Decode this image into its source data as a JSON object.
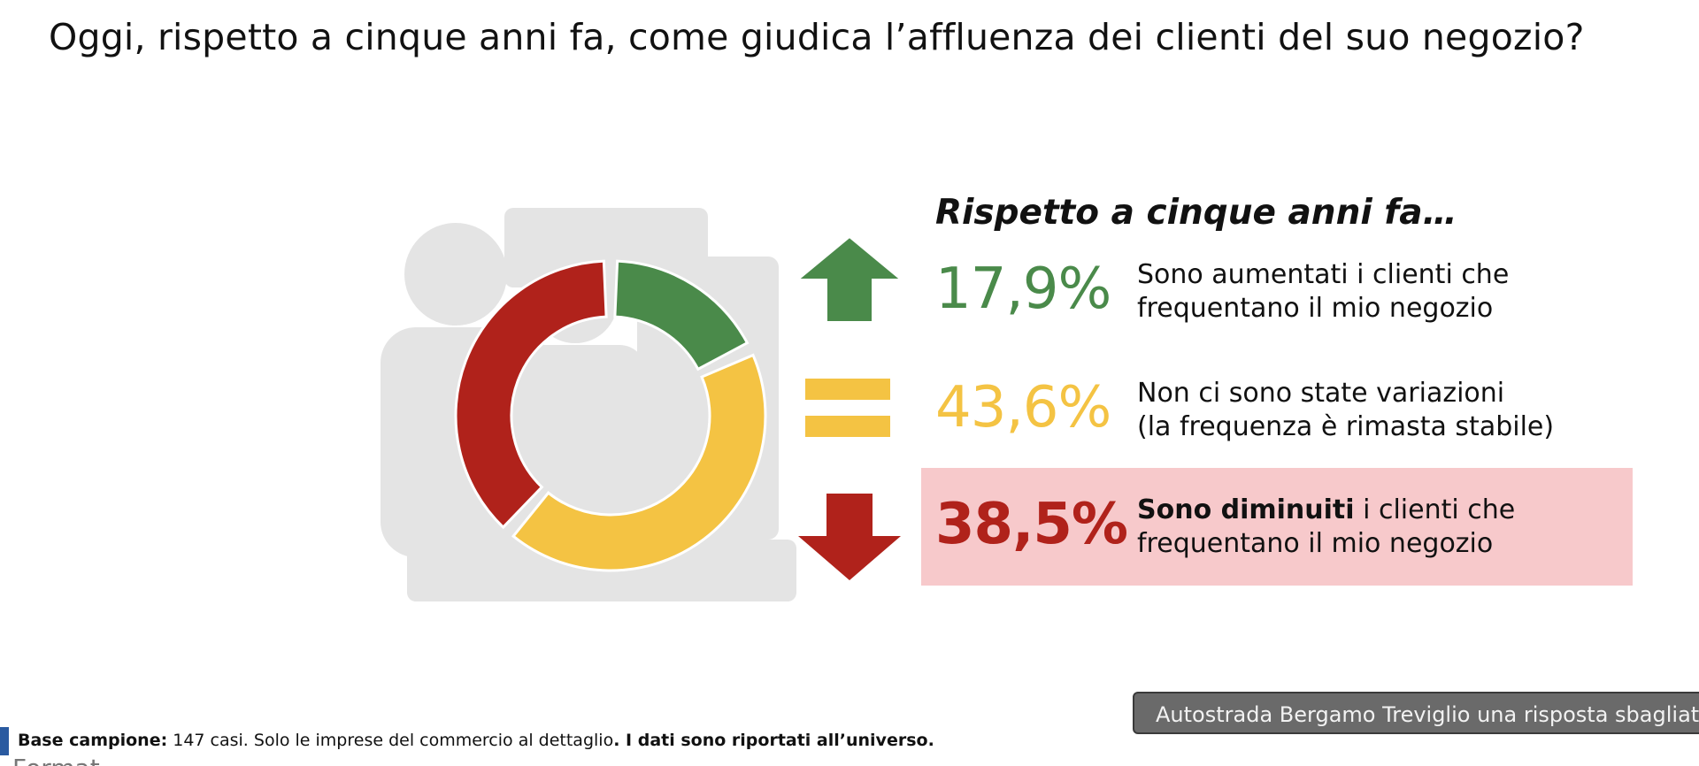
{
  "title": "Oggi, rispetto a cinque anni fa, come giudica l’affluenza dei clienti del suo negozio?",
  "chart_data": {
    "type": "pie",
    "style": "donut",
    "heading": "Rispetto a cinque anni fa…",
    "slices": [
      {
        "key": "up",
        "value": 17.9,
        "label": "17,9%",
        "text_bold": "",
        "text_line1": "Sono aumentati i clienti che",
        "text_line2": "frequentano il mio negozio",
        "color": "#4a8a4a",
        "icon": "arrow-up-icon"
      },
      {
        "key": "same",
        "value": 43.6,
        "label": "43,6%",
        "text_bold": "",
        "text_line1": "Non ci sono state variazioni",
        "text_line2": "(la frequenza è rimasta stabile)",
        "color": "#f4c343",
        "icon": "equals-icon"
      },
      {
        "key": "down",
        "value": 38.5,
        "label": "38,5%",
        "text_bold": "Sono diminuiti",
        "text_line1": " i clienti che",
        "text_line2": "frequentano il mio negozio",
        "color": "#b0221b",
        "icon": "arrow-down-icon",
        "highlight_color": "#f7c9cb"
      }
    ]
  },
  "footer": {
    "base_label": "Base campione:",
    "base_text": " 147 casi. Solo le imprese del commercio al dettaglio",
    "dot": ".",
    "note": " I dati sono riportati all’universo.",
    "ghost_text": "Format"
  },
  "tooltip": {
    "text": "Autostrada Bergamo Treviglio una risposta sbagliata"
  }
}
